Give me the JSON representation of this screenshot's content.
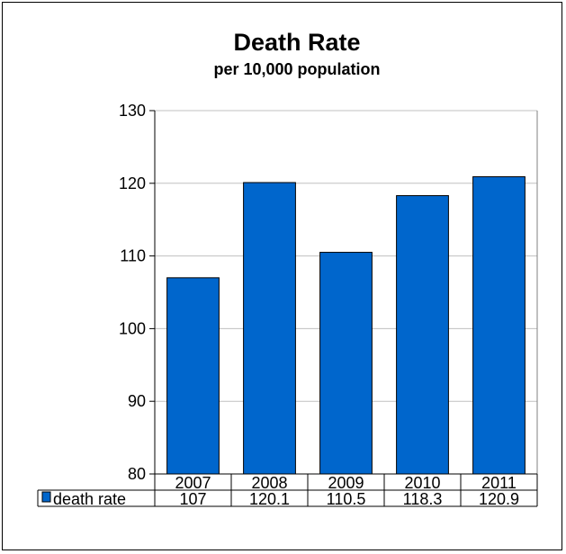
{
  "chart_data": {
    "type": "bar",
    "title": "Death Rate",
    "subtitle": "per 10,000 population",
    "categories": [
      "2007",
      "2008",
      "2009",
      "2010",
      "2011"
    ],
    "series": [
      {
        "name": "death rate",
        "values": [
          107,
          120.1,
          110.5,
          118.3,
          120.9
        ],
        "labels": [
          "107",
          "120.1",
          "110.5",
          "118.3",
          "120.9"
        ],
        "color": "#0066CC"
      }
    ],
    "ylim": [
      80,
      130
    ],
    "yticks": [
      80,
      90,
      100,
      110,
      120,
      130
    ],
    "grid": true,
    "legend": "data-table"
  }
}
